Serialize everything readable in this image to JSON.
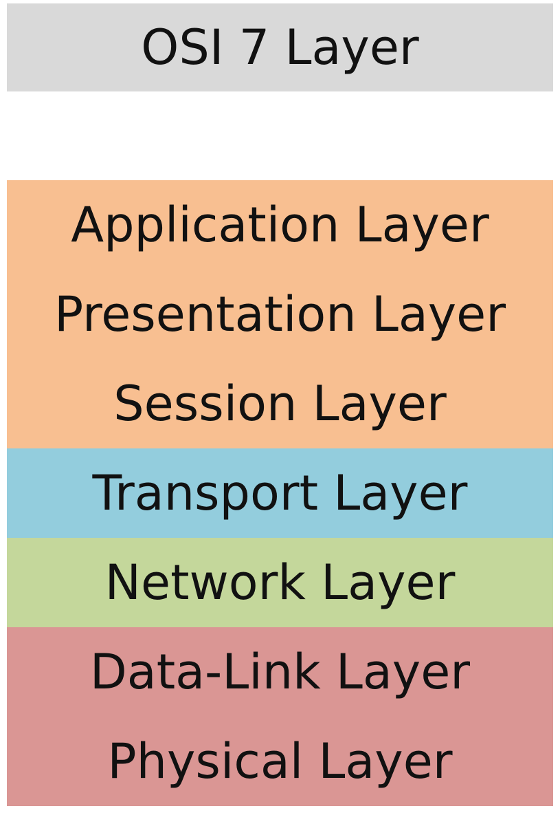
{
  "title": "OSI 7 Layer",
  "colors": {
    "header_bg": "#d9d9d9",
    "blank_bg": "#ffffff",
    "upper_layers_bg": "#f8bf91",
    "transport_bg": "#93cddd",
    "network_bg": "#c4d79b",
    "lower_layers_bg": "#da9694"
  },
  "layers": [
    {
      "label": "Application Layer"
    },
    {
      "label": "Presentation Layer"
    },
    {
      "label": "Session Layer"
    },
    {
      "label": "Transport Layer"
    },
    {
      "label": "Network Layer"
    },
    {
      "label": "Data-Link Layer"
    },
    {
      "label": "Physical Layer"
    }
  ]
}
